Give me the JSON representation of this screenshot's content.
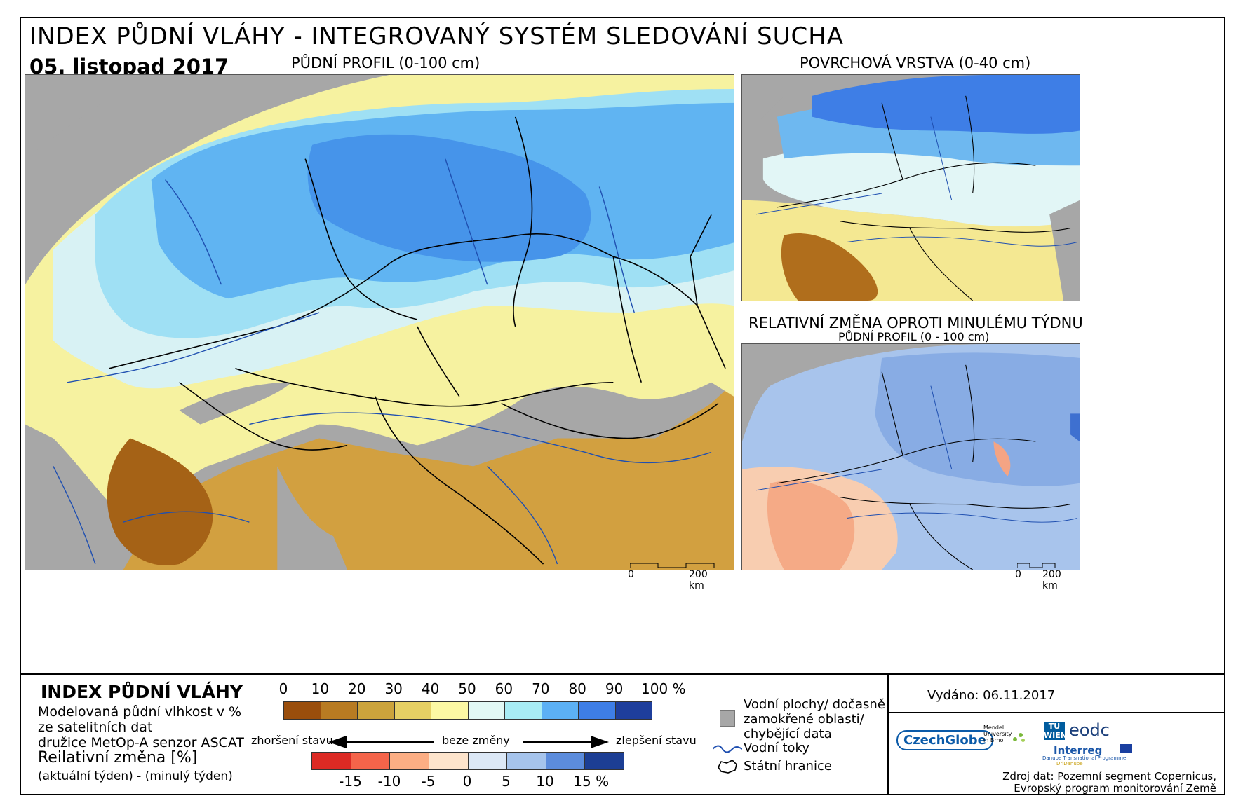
{
  "header": {
    "title": "INDEX PŮDNÍ VLÁHY - INTEGROVANÝ SYSTÉM SLEDOVÁNÍ SUCHA",
    "date": "05. listopad 2017",
    "main_map_label": "PŮDNÍ PROFIL (0-100 cm)",
    "surface_map_label": "POVRCHOVÁ VRSTVA (0-40 cm)",
    "change_map_label": "RELATIVNÍ ZMĚNA OPROTI MINULÉMU TÝDNU",
    "change_map_sublabel": "PŮDNÍ PROFIL (0 - 100 cm)"
  },
  "scale_bar": {
    "zero": "0",
    "distance": "200 km"
  },
  "legend": {
    "title": "INDEX PŮDNÍ VLÁHY",
    "description": [
      "Modelovaná půdní vlhkost v %",
      "ze satelitních dat",
      "družice MetOp-A senzor ASCAT"
    ],
    "change_title": "Reilativní změna [%]",
    "change_formula": "(aktuální týden) - (minulý týden)",
    "index_ticks": [
      "0",
      "10",
      "20",
      "30",
      "40",
      "50",
      "60",
      "70",
      "80",
      "90",
      "100 %"
    ],
    "index_colors": [
      "#9a4e0c",
      "#b87b22",
      "#cca43c",
      "#e6d064",
      "#fcf8a4",
      "#e2f8f4",
      "#a8ecf4",
      "#5cb0f4",
      "#3e7ee6",
      "#1e3e9c"
    ],
    "worse": "zhoršení stavu",
    "nochange": "beze změny",
    "better": "zlepšení stavu",
    "change_ticks": [
      "-15",
      "-10",
      "-5",
      "0",
      "5",
      "10",
      "15 %"
    ],
    "change_colors": [
      "#dc2a24",
      "#f4644a",
      "#fcae84",
      "#fde4cc",
      "#dce8f6",
      "#a6c4ec",
      "#5c8cdc",
      "#1c3e94"
    ],
    "missing_label": [
      "Vodní plochy/ dočasně",
      "zamokřené oblasti/",
      "chybějící data"
    ],
    "rivers_label": "Vodní toky",
    "borders_label": "Státní hranice"
  },
  "footer": {
    "issued": "Vydáno: 06.11.2017",
    "logos": [
      "CzechGlobe",
      "Mendel University in Brno",
      "TU WIEN",
      "eodc",
      "Interreg",
      "Danube Transnational Programme",
      "DriDanube"
    ],
    "source": [
      "Zdroj dat: Pozemní segment Copernicus,",
      "Evropský program monitorování Země"
    ]
  }
}
